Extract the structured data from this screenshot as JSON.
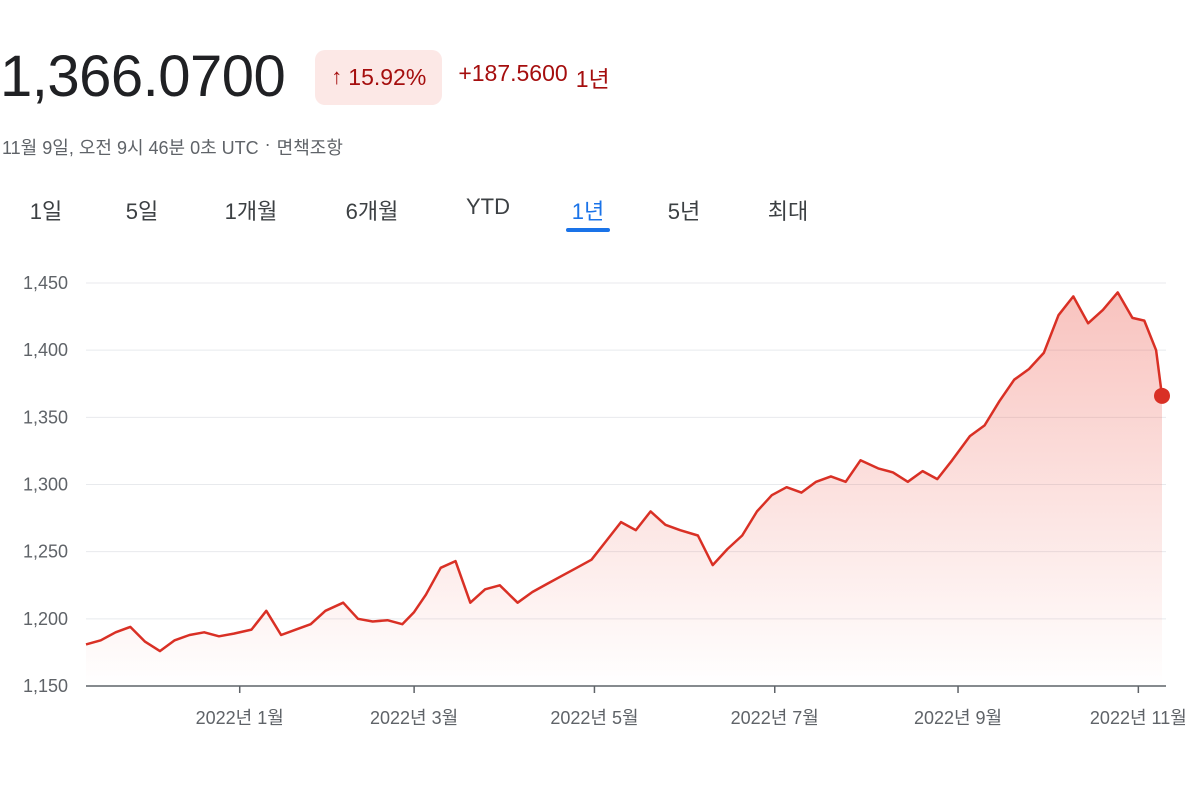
{
  "header": {
    "price": "1,366.0700",
    "change_percent": "15.92%",
    "change_abs": "+187.5600",
    "change_period": "1년",
    "up_arrow_icon": "arrow-up-icon"
  },
  "timestamp": {
    "datetime": "11월 9일, 오전 9시 46분 0초 UTC",
    "separator": "·",
    "disclaimer": "면책조항"
  },
  "tabs": [
    {
      "label": "1일",
      "active": false
    },
    {
      "label": "5일",
      "active": false
    },
    {
      "label": "1개월",
      "active": false
    },
    {
      "label": "6개월",
      "active": false
    },
    {
      "label": "YTD",
      "active": false
    },
    {
      "label": "1년",
      "active": true
    },
    {
      "label": "5년",
      "active": false
    },
    {
      "label": "최대",
      "active": false
    }
  ],
  "colors": {
    "line": "#d93025",
    "fill": "#ea4335",
    "grid": "#e8eaed",
    "axis": "#5f6368",
    "accent_tab": "#1a73e8"
  },
  "chart_data": {
    "type": "area",
    "ylim": [
      1150,
      1460
    ],
    "yticks": [
      1150,
      1200,
      1250,
      1300,
      1350,
      1400,
      1450
    ],
    "ytick_labels": [
      "1,150",
      "1,200",
      "1,250",
      "1,300",
      "1,350",
      "1,400",
      "1,450"
    ],
    "xlim": [
      "2021-11-10",
      "2022-11-09"
    ],
    "xticks": [
      "2022-01-01",
      "2022-03-01",
      "2022-05-01",
      "2022-07-01",
      "2022-09-01",
      "2022-11-01"
    ],
    "xtick_labels": [
      "2022년 1월",
      "2022년 3월",
      "2022년 5월",
      "2022년 7월",
      "2022년 9월",
      "2022년 11월"
    ],
    "grid": true,
    "series": [
      {
        "x": [
          "2021-11-10",
          "2021-11-15",
          "2021-11-20",
          "2021-11-25",
          "2021-11-30",
          "2021-12-05",
          "2021-12-10",
          "2021-12-15",
          "2021-12-20",
          "2021-12-25",
          "2021-12-30",
          "2022-01-05",
          "2022-01-10",
          "2022-01-15",
          "2022-01-20",
          "2022-01-25",
          "2022-01-30",
          "2022-02-05",
          "2022-02-10",
          "2022-02-15",
          "2022-02-20",
          "2022-02-25",
          "2022-03-01",
          "2022-03-05",
          "2022-03-10",
          "2022-03-15",
          "2022-03-20",
          "2022-03-25",
          "2022-03-30",
          "2022-04-05",
          "2022-04-10",
          "2022-04-15",
          "2022-04-20",
          "2022-04-25",
          "2022-04-30",
          "2022-05-05",
          "2022-05-10",
          "2022-05-15",
          "2022-05-20",
          "2022-05-25",
          "2022-05-30",
          "2022-06-05",
          "2022-06-10",
          "2022-06-15",
          "2022-06-20",
          "2022-06-25",
          "2022-06-30",
          "2022-07-05",
          "2022-07-10",
          "2022-07-15",
          "2022-07-20",
          "2022-07-25",
          "2022-07-30",
          "2022-08-05",
          "2022-08-10",
          "2022-08-15",
          "2022-08-20",
          "2022-08-25",
          "2022-08-30",
          "2022-09-05",
          "2022-09-10",
          "2022-09-15",
          "2022-09-20",
          "2022-09-25",
          "2022-09-30",
          "2022-10-05",
          "2022-10-10",
          "2022-10-15",
          "2022-10-20",
          "2022-10-25",
          "2022-10-30",
          "2022-11-03",
          "2022-11-07",
          "2022-11-09"
        ],
        "values": [
          1181,
          1184,
          1190,
          1194,
          1183,
          1176,
          1184,
          1188,
          1190,
          1187,
          1189,
          1192,
          1206,
          1188,
          1192,
          1196,
          1206,
          1212,
          1200,
          1198,
          1199,
          1196,
          1205,
          1218,
          1238,
          1243,
          1212,
          1222,
          1225,
          1212,
          1220,
          1226,
          1232,
          1238,
          1244,
          1258,
          1272,
          1266,
          1280,
          1270,
          1266,
          1262,
          1240,
          1252,
          1262,
          1280,
          1292,
          1298,
          1294,
          1302,
          1306,
          1302,
          1318,
          1312,
          1309,
          1302,
          1310,
          1304,
          1318,
          1336,
          1344,
          1362,
          1378,
          1386,
          1398,
          1426,
          1440,
          1420,
          1430,
          1443,
          1424,
          1422,
          1400,
          1366
        ]
      }
    ],
    "last_value": 1366.07
  }
}
